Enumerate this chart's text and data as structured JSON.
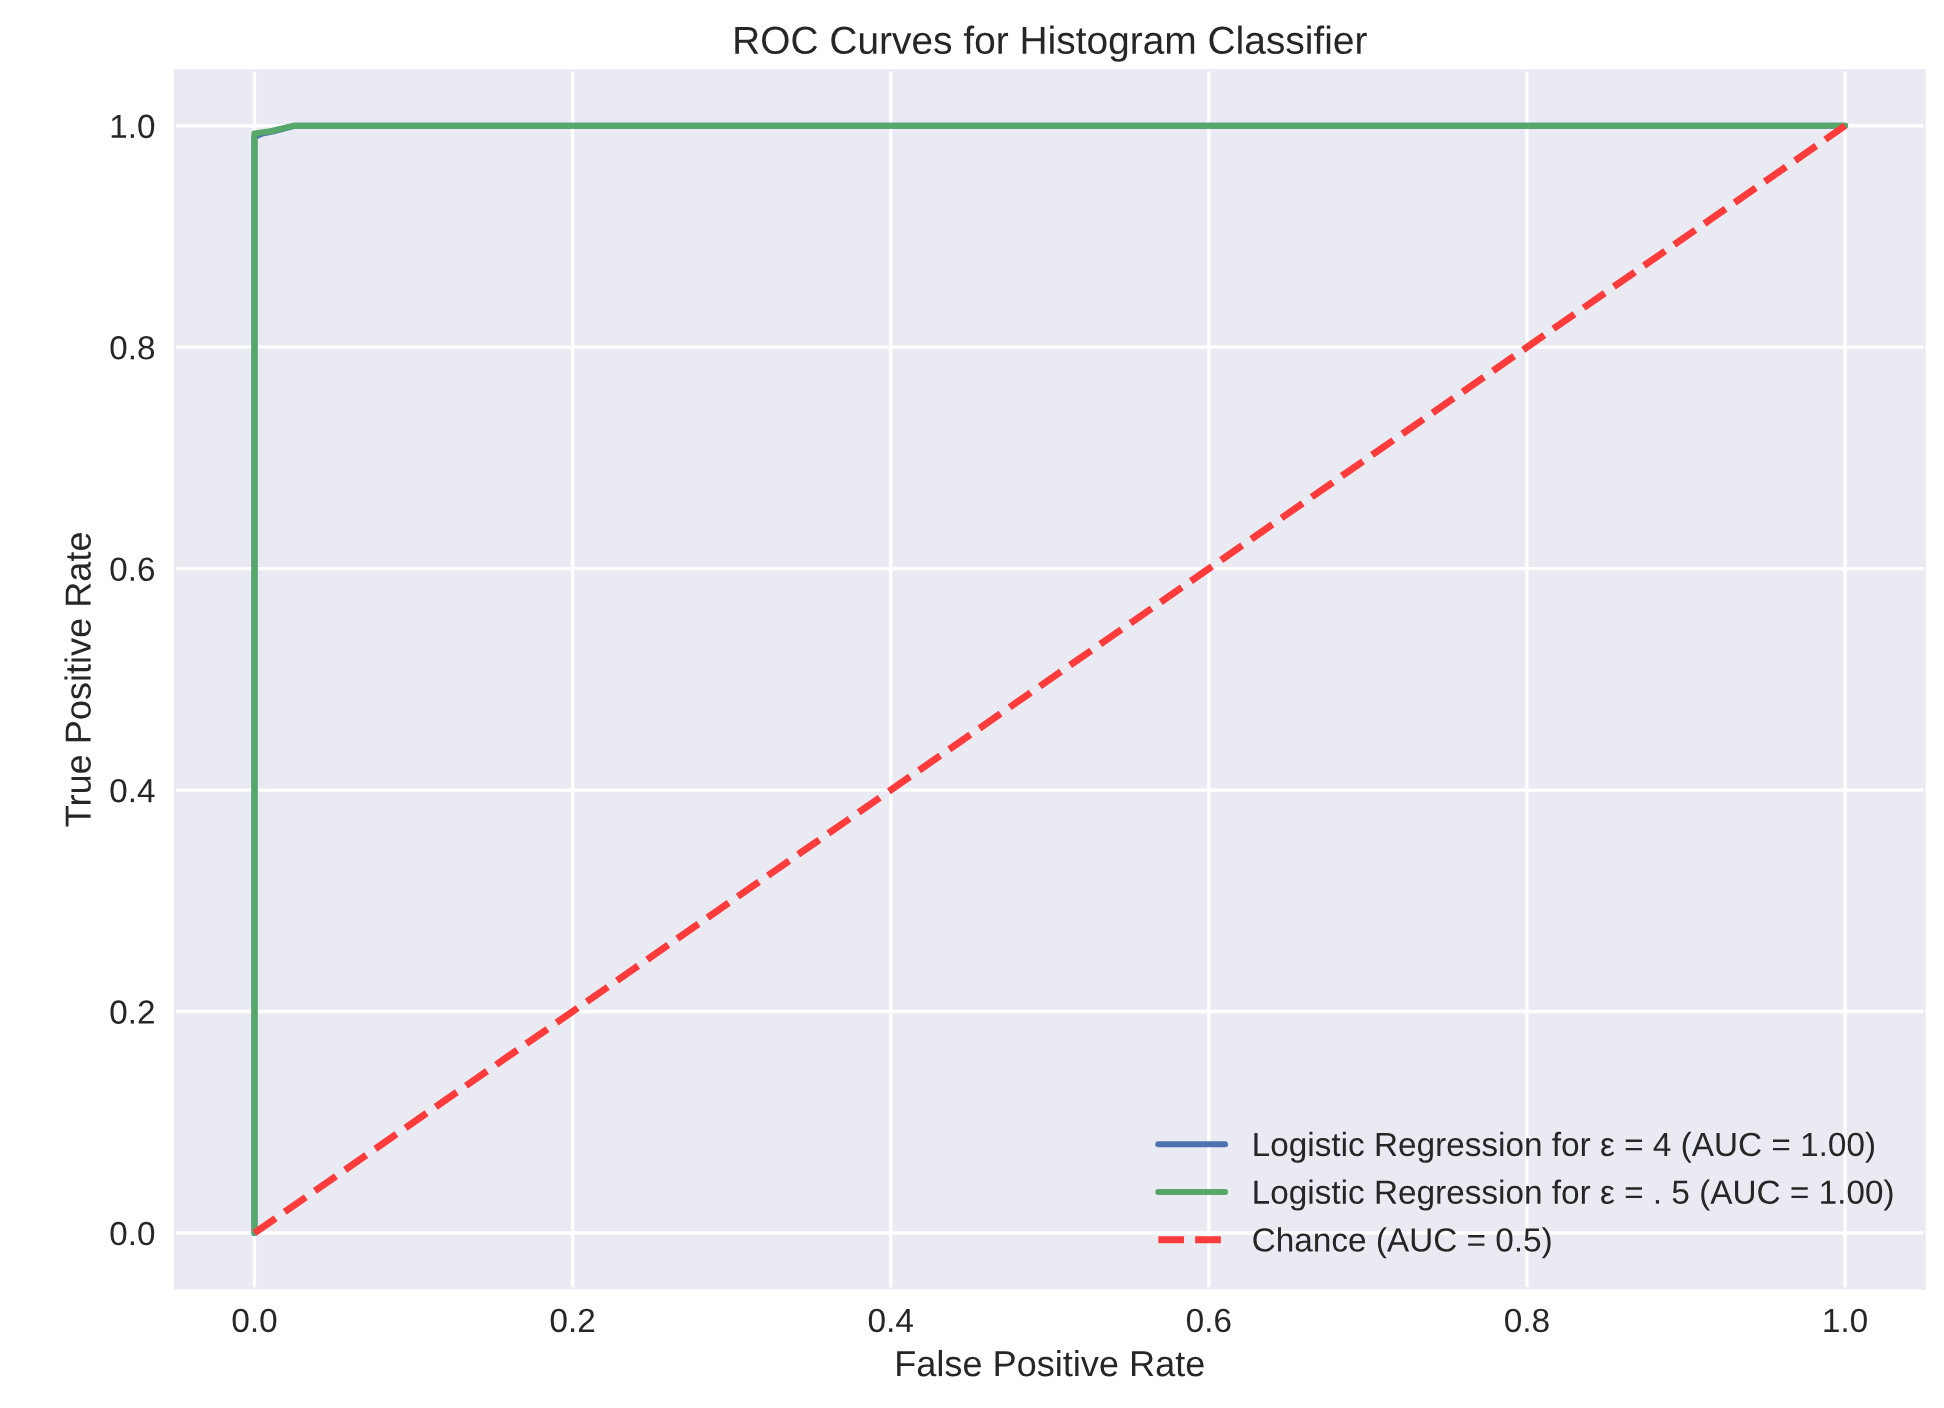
{
  "chart_data": {
    "type": "line",
    "title": "ROC Curves for Histogram Classifier",
    "xlabel": "False Positive Rate",
    "ylabel": "True Positive Rate",
    "xlim": [
      -0.05,
      1.05
    ],
    "ylim": [
      -0.05,
      1.05
    ],
    "xticks": [
      {
        "value": 0,
        "label": "0.0"
      },
      0.2,
      0.4,
      0.6,
      0.8,
      {
        "value": 1,
        "label": "1.0"
      }
    ],
    "yticks": [
      {
        "value": 0,
        "label": "0.0"
      },
      0.2,
      0.4,
      0.6,
      0.8,
      {
        "value": 1,
        "label": "1.0"
      }
    ],
    "grid": true,
    "legend": "bottom right",
    "marker": "none",
    "series": [
      {
        "name": "Logistic Regression for ε = 4 (AUC = 1.00)",
        "color": "#4c72b0",
        "x": [
          0,
          0,
          0.005,
          0.012,
          0.025,
          1
        ],
        "values": [
          0,
          0.99,
          0.993,
          0.995,
          1,
          1
        ],
        "line_style": "solid"
      },
      {
        "name": "Logistic Regression for ε = . 5 (AUC = 1.00)",
        "color": "#55a868",
        "x": [
          0,
          0,
          0.01,
          0.025,
          1
        ],
        "values": [
          0,
          0.993,
          0.995,
          1,
          1
        ],
        "line_style": "solid"
      },
      {
        "name": "Chance (AUC = 0.5)",
        "color": "#ff3b3b",
        "x": [
          0,
          1
        ],
        "values": [
          0,
          1
        ],
        "line_style": "dashed"
      }
    ]
  }
}
